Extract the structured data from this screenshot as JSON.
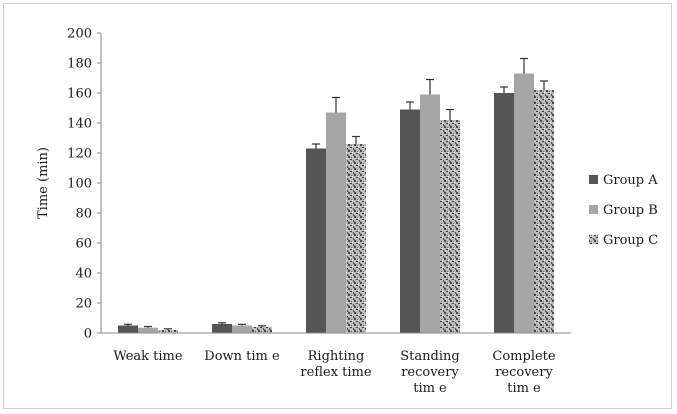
{
  "chart_data": {
    "type": "bar",
    "title": "",
    "xlabel": "",
    "ylabel": "Time (min)",
    "ylim": [
      0,
      200
    ],
    "yticks": [
      0,
      20,
      40,
      60,
      80,
      100,
      120,
      140,
      160,
      180,
      200
    ],
    "grid": false,
    "legend_position": "right",
    "categories": [
      [
        "Weak time"
      ],
      [
        "Down tim e"
      ],
      [
        "Righting",
        "reflex time"
      ],
      [
        "Standing",
        "recovery",
        "tim e"
      ],
      [
        "Complete",
        "recovery",
        "tim e"
      ]
    ],
    "series": [
      {
        "name": "Group A",
        "color": "#555555",
        "pattern": "solid",
        "values": [
          5,
          6,
          123,
          149,
          160
        ],
        "errors": [
          0.8,
          0.8,
          3,
          5,
          4
        ]
      },
      {
        "name": "Group B",
        "color": "#a6a6a6",
        "pattern": "solid",
        "values": [
          3.5,
          5,
          147,
          159,
          173
        ],
        "errors": [
          0.8,
          0.8,
          10,
          10,
          10
        ]
      },
      {
        "name": "Group C",
        "color": "#8c8c8c",
        "pattern": "speckled",
        "values": [
          2,
          4,
          126,
          142,
          162
        ],
        "errors": [
          0.8,
          0.8,
          5,
          7,
          6
        ]
      }
    ]
  }
}
